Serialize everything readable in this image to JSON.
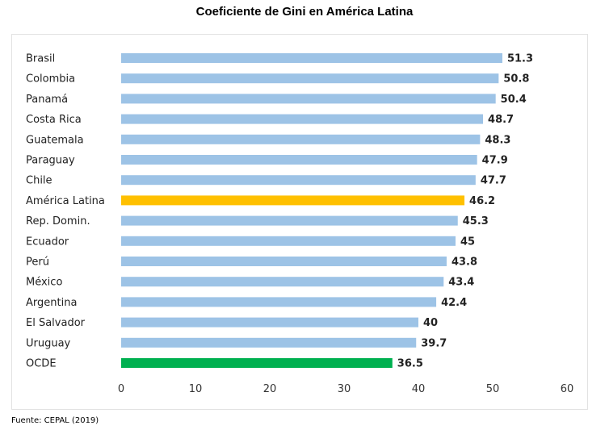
{
  "chart_data": {
    "type": "bar",
    "orientation": "horizontal",
    "title": "Coeficiente de Gini en América Latina",
    "categories": [
      "Brasil",
      "Colombia",
      "Panamá",
      "Costa Rica",
      "Guatemala",
      "Paraguay",
      "Chile",
      "América Latina",
      "Rep. Domin.",
      "Ecuador",
      "Perú",
      "México",
      "Argentina",
      "El Salvador",
      "Uruguay",
      "OCDE"
    ],
    "values": [
      51.3,
      50.8,
      50.4,
      48.7,
      48.3,
      47.9,
      47.7,
      46.2,
      45.3,
      45,
      43.8,
      43.4,
      42.4,
      40,
      39.7,
      36.5
    ],
    "value_labels": [
      "51.3",
      "50.8",
      "50.4",
      "48.7",
      "48.3",
      "47.9",
      "47.7",
      "46.2",
      "45.3",
      "45",
      "43.8",
      "43.4",
      "42.4",
      "40",
      "39.7",
      "36.5"
    ],
    "colors": [
      "#9dc3e6",
      "#9dc3e6",
      "#9dc3e6",
      "#9dc3e6",
      "#9dc3e6",
      "#9dc3e6",
      "#9dc3e6",
      "#ffc000",
      "#9dc3e6",
      "#9dc3e6",
      "#9dc3e6",
      "#9dc3e6",
      "#9dc3e6",
      "#9dc3e6",
      "#9dc3e6",
      "#00b050"
    ],
    "xlim": [
      0,
      60
    ],
    "xticks": [
      "0",
      "10",
      "20",
      "30",
      "40",
      "50",
      "60"
    ],
    "xlabel": "",
    "ylabel": "",
    "grid": false,
    "legend": "none"
  },
  "source": "Fuente: CEPAL (2019)"
}
